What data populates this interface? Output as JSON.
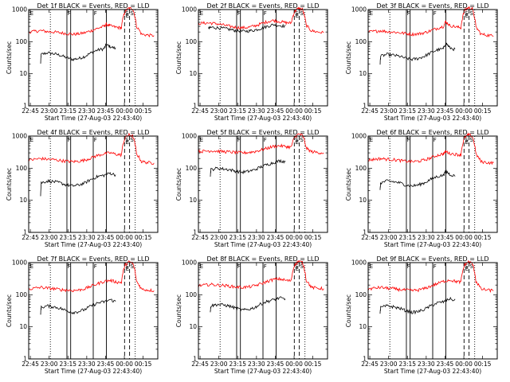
{
  "chart_data": {
    "type": "line",
    "layout": "3x3 grid",
    "xlabel": "Start Time (27-Aug-03 22:43:40)",
    "ylabel": "Counts/sec",
    "x_ticks": [
      "22:45",
      "23:00",
      "23:15",
      "23:30",
      "23:45",
      "00:00",
      "00:15"
    ],
    "x_tick_minutes": [
      1.33,
      16.33,
      31.33,
      46.33,
      61.33,
      76.33,
      91.33
    ],
    "x_range_minutes": [
      0,
      103
    ],
    "y_scale": "log",
    "y_range": [
      1,
      1000
    ],
    "y_ticks": [
      "1",
      "10",
      "100",
      "1000"
    ],
    "y_tick_values": [
      1,
      10,
      100,
      1000
    ],
    "colors": {
      "events": "#000000",
      "lld": "#ff0000"
    },
    "marker_lines": {
      "dotted_minutes": [
        17.3,
        85.0
      ],
      "solid_minutes": [
        30.5,
        33.5,
        51.5,
        62.0
      ],
      "dashed_minutes": [
        76.5,
        80.5
      ],
      "labels": [
        {
          "text": "E",
          "minute": 1.0
        },
        {
          "text": "F",
          "minute": 31.0
        },
        {
          "text": "F",
          "minute": 52.0
        },
        {
          "text": "S",
          "minute": 77.0
        },
        {
          "text": "S",
          "minute": 81.0
        },
        {
          "text": "E",
          "minute": 77.3
        }
      ]
    },
    "panels": [
      {
        "title": "Det 1f BLACK = Events, RED = LLD",
        "series": [
          {
            "role": "events",
            "color": "#000000",
            "x_minutes": [
              9.5,
              10,
              15,
              20,
              25,
              30,
              35,
              40,
              45,
              50,
              55,
              60,
              62,
              65,
              70,
              76
            ],
            "values": [
              20,
              40,
              45,
              42,
              38,
              32,
              28,
              30,
              35,
              45,
              55,
              60,
              80,
              70,
              60,
              null
            ]
          },
          {
            "role": "lld",
            "color": "#ff0000",
            "x_minutes": [
              0,
              5,
              10,
              15,
              20,
              25,
              30,
              35,
              40,
              45,
              50,
              55,
              60,
              62,
              65,
              70,
              74,
              77,
              80,
              83,
              86,
              90,
              95,
              100
            ],
            "values": [
              200,
              210,
              220,
              205,
              200,
              190,
              180,
              170,
              175,
              190,
              220,
              260,
              300,
              350,
              310,
              280,
              270,
              900,
              1100,
              1050,
              300,
              170,
              160,
              155
            ]
          }
        ]
      },
      {
        "title": "Det 2f BLACK = Events, RED = LLD",
        "series": [
          {
            "role": "events",
            "color": "#000000",
            "x_minutes": [
              8,
              10,
              15,
              20,
              25,
              30,
              35,
              40,
              45,
              50,
              55,
              60,
              65,
              70,
              75
            ],
            "values": [
              250,
              280,
              270,
              260,
              240,
              220,
              210,
              215,
              230,
              260,
              300,
              340,
              320,
              300,
              null
            ]
          },
          {
            "role": "lld",
            "color": "#ff0000",
            "x_minutes": [
              0,
              5,
              10,
              15,
              20,
              25,
              30,
              35,
              40,
              45,
              50,
              55,
              60,
              65,
              70,
              74,
              77,
              80,
              83,
              86,
              90,
              95,
              100
            ],
            "values": [
              370,
              380,
              380,
              360,
              330,
              300,
              280,
              270,
              280,
              310,
              360,
              420,
              460,
              420,
              390,
              380,
              900,
              1100,
              1000,
              320,
              220,
              200,
              190
            ]
          }
        ]
      },
      {
        "title": "Det 3f BLACK = Events, RED = LLD",
        "series": [
          {
            "role": "events",
            "color": "#000000",
            "x_minutes": [
              9.5,
              10,
              15,
              20,
              25,
              30,
              35,
              40,
              45,
              50,
              55,
              60,
              62,
              65,
              70,
              76
            ],
            "values": [
              20,
              35,
              40,
              38,
              35,
              30,
              28,
              30,
              35,
              45,
              55,
              60,
              90,
              65,
              55,
              null
            ]
          },
          {
            "role": "lld",
            "color": "#ff0000",
            "x_minutes": [
              0,
              5,
              10,
              15,
              20,
              25,
              30,
              35,
              40,
              45,
              50,
              55,
              60,
              62,
              65,
              70,
              74,
              77,
              80,
              83,
              86,
              90,
              95,
              100
            ],
            "values": [
              200,
              210,
              220,
              205,
              200,
              190,
              180,
              170,
              175,
              190,
              220,
              260,
              300,
              420,
              320,
              290,
              270,
              950,
              1150,
              1050,
              280,
              170,
              160,
              150
            ]
          }
        ]
      },
      {
        "title": "Det 4f BLACK = Events, RED = LLD",
        "series": [
          {
            "role": "events",
            "color": "#000000",
            "x_minutes": [
              9.5,
              10,
              15,
              20,
              25,
              30,
              35,
              40,
              45,
              50,
              55,
              60,
              65,
              70,
              76
            ],
            "values": [
              15,
              35,
              40,
              38,
              35,
              30,
              28,
              30,
              35,
              45,
              55,
              60,
              70,
              60,
              null
            ]
          },
          {
            "role": "lld",
            "color": "#ff0000",
            "x_minutes": [
              0,
              5,
              10,
              15,
              20,
              25,
              30,
              35,
              40,
              45,
              50,
              55,
              60,
              65,
              70,
              74,
              77,
              80,
              83,
              86,
              90,
              95,
              100
            ],
            "values": [
              180,
              190,
              200,
              190,
              185,
              175,
              165,
              160,
              165,
              180,
              210,
              250,
              280,
              300,
              270,
              260,
              900,
              1100,
              1000,
              280,
              160,
              150,
              145
            ]
          }
        ]
      },
      {
        "title": "Det 5f BLACK = Events, RED = LLD",
        "series": [
          {
            "role": "events",
            "color": "#000000",
            "x_minutes": [
              9.5,
              10,
              15,
              20,
              25,
              30,
              35,
              40,
              45,
              50,
              55,
              60,
              65,
              70,
              76
            ],
            "values": [
              60,
              90,
              100,
              95,
              90,
              80,
              75,
              80,
              90,
              110,
              130,
              150,
              170,
              160,
              null
            ]
          },
          {
            "role": "lld",
            "color": "#ff0000",
            "x_minutes": [
              0,
              5,
              10,
              15,
              20,
              25,
              30,
              35,
              40,
              45,
              50,
              55,
              60,
              65,
              70,
              74,
              77,
              80,
              83,
              86,
              90,
              95,
              100
            ],
            "values": [
              330,
              340,
              350,
              340,
              330,
              320,
              310,
              300,
              310,
              330,
              370,
              420,
              480,
              500,
              470,
              450,
              950,
              1150,
              1050,
              420,
              330,
              310,
              300
            ]
          }
        ]
      },
      {
        "title": "Det 6f BLACK = Events, RED = LLD",
        "series": [
          {
            "role": "events",
            "color": "#000000",
            "x_minutes": [
              9.5,
              10,
              15,
              20,
              25,
              30,
              35,
              40,
              45,
              50,
              55,
              60,
              62,
              65,
              70,
              76
            ],
            "values": [
              20,
              35,
              40,
              38,
              35,
              30,
              28,
              30,
              35,
              45,
              55,
              60,
              80,
              65,
              55,
              null
            ]
          },
          {
            "role": "lld",
            "color": "#ff0000",
            "x_minutes": [
              0,
              5,
              10,
              15,
              20,
              25,
              30,
              35,
              40,
              45,
              50,
              55,
              60,
              62,
              65,
              70,
              74,
              77,
              80,
              83,
              86,
              90,
              95,
              100
            ],
            "values": [
              180,
              190,
              200,
              190,
              185,
              175,
              165,
              160,
              165,
              180,
              210,
              250,
              280,
              330,
              290,
              270,
              260,
              900,
              1100,
              1000,
              270,
              160,
              150,
              145
            ]
          }
        ]
      },
      {
        "title": "Det 7f BLACK = Events, RED = LLD",
        "series": [
          {
            "role": "events",
            "color": "#000000",
            "x_minutes": [
              9.5,
              10,
              15,
              20,
              25,
              30,
              35,
              40,
              45,
              50,
              55,
              60,
              65,
              70,
              76
            ],
            "values": [
              25,
              40,
              45,
              42,
              38,
              32,
              28,
              30,
              35,
              45,
              55,
              60,
              70,
              60,
              null
            ]
          },
          {
            "role": "lld",
            "color": "#ff0000",
            "x_minutes": [
              0,
              5,
              10,
              15,
              20,
              25,
              30,
              35,
              40,
              45,
              50,
              55,
              60,
              65,
              70,
              74,
              77,
              80,
              83,
              86,
              90,
              95,
              100
            ],
            "values": [
              150,
              160,
              170,
              160,
              155,
              145,
              140,
              135,
              140,
              155,
              185,
              220,
              260,
              280,
              250,
              240,
              850,
              1050,
              950,
              260,
              150,
              140,
              135
            ]
          }
        ]
      },
      {
        "title": "Det 8f BLACK = Events, RED = LLD",
        "series": [
          {
            "role": "events",
            "color": "#000000",
            "x_minutes": [
              9.5,
              10,
              15,
              20,
              25,
              30,
              35,
              40,
              45,
              50,
              55,
              60,
              65,
              70,
              76
            ],
            "values": [
              30,
              45,
              50,
              48,
              44,
              38,
              33,
              35,
              40,
              52,
              62,
              70,
              80,
              70,
              null
            ]
          },
          {
            "role": "lld",
            "color": "#ff0000",
            "x_minutes": [
              0,
              5,
              10,
              15,
              20,
              25,
              30,
              35,
              40,
              45,
              50,
              55,
              60,
              65,
              70,
              74,
              77,
              80,
              83,
              86,
              90,
              95,
              100
            ],
            "values": [
              190,
              200,
              210,
              200,
              195,
              185,
              175,
              170,
              175,
              190,
              220,
              260,
              300,
              310,
              280,
              270,
              900,
              1100,
              1000,
              280,
              170,
              160,
              155
            ]
          }
        ]
      },
      {
        "title": "Det 9f BLACK = Events, RED = LLD",
        "series": [
          {
            "role": "events",
            "color": "#000000",
            "x_minutes": [
              9.5,
              10,
              15,
              20,
              25,
              30,
              35,
              40,
              45,
              50,
              55,
              60,
              65,
              70,
              76
            ],
            "values": [
              25,
              40,
              45,
              42,
              38,
              32,
              28,
              30,
              35,
              45,
              55,
              60,
              75,
              65,
              null
            ]
          },
          {
            "role": "lld",
            "color": "#ff0000",
            "x_minutes": [
              0,
              5,
              10,
              15,
              20,
              25,
              30,
              35,
              40,
              45,
              50,
              55,
              60,
              65,
              70,
              74,
              77,
              80,
              83,
              86,
              90,
              95,
              100
            ],
            "values": [
              150,
              160,
              170,
              160,
              155,
              145,
              140,
              135,
              140,
              155,
              185,
              220,
              260,
              290,
              260,
              245,
              850,
              1050,
              950,
              260,
              150,
              140,
              135
            ]
          }
        ]
      }
    ]
  }
}
